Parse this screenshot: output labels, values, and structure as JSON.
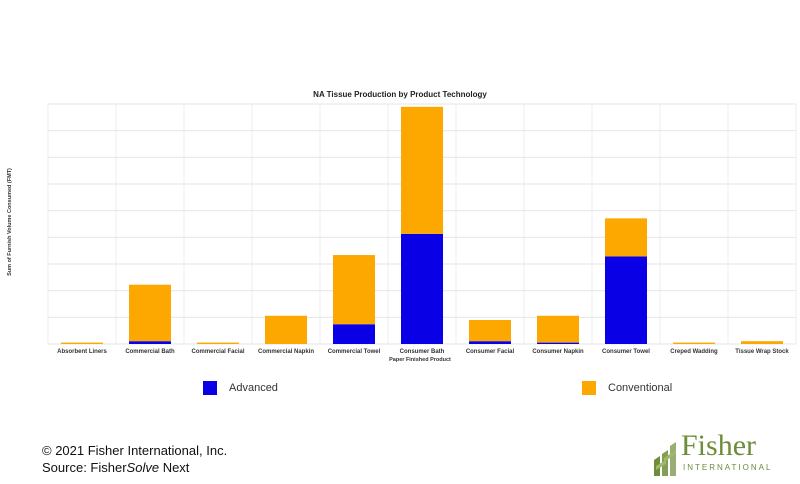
{
  "chart_data": {
    "type": "bar",
    "stacked": true,
    "title": "NA Tissue Production by Product Technology",
    "xlabel": "Paper Finished Product",
    "ylabel": "Sum of Furnish Volume Consumed (FMT)",
    "ylim": [
      0,
      85
    ],
    "grid": true,
    "legend_position": "bottom",
    "categories": [
      "Absorbent Liners",
      "Commercial Bath",
      "Commercial Facial",
      "Commercial Napkin",
      "Commercial Towel",
      "Consumer Bath",
      "Consumer Facial",
      "Consumer Napkin",
      "Consumer Towel",
      "Creped Wadding",
      "Tissue Wrap Stock"
    ],
    "series": [
      {
        "name": "Advanced",
        "color": "#0a00e6",
        "values": [
          0,
          1,
          0,
          0,
          7,
          39,
          1,
          0.5,
          31,
          0,
          0
        ]
      },
      {
        "name": "Conventional",
        "color": "#fca800",
        "values": [
          0.5,
          20,
          0.5,
          10,
          24.5,
          45,
          7.5,
          9.5,
          13.5,
          0.5,
          1
        ]
      }
    ]
  },
  "footer": {
    "copyright": "© 2021 Fisher International, Inc.",
    "source_prefix": "Source: Fisher",
    "source_italic": "Solve",
    "source_suffix": " Next"
  },
  "logo": {
    "name": "Fisher",
    "subtitle": "INTERNATIONAL",
    "color": "#6e8c3a"
  }
}
